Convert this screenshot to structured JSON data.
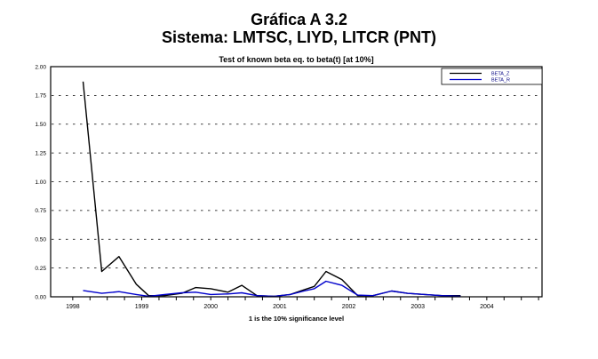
{
  "header": {
    "title_line1": "Gráfica A 3.2",
    "title_line2": "Sistema: LMTSC, LIYD, LITCR (PNT)"
  },
  "chart_data": {
    "type": "line",
    "title": "Test of known beta eq. to beta(t) [at 10%]",
    "footnote": "1 is the 10% significance level",
    "xlabel": "",
    "ylabel": "",
    "xlim": [
      1997.68,
      2004.8
    ],
    "ylim": [
      0,
      2
    ],
    "grid": "horizontal-dashed",
    "legend_position": "top-right",
    "x_tick_years": [
      1998,
      1999,
      2000,
      2001,
      2002,
      2003,
      2004
    ],
    "x_minor_tick_step": 0.25,
    "y_tick_labels": [
      "0.00",
      "0.25",
      "0.50",
      "0.75",
      "1.00",
      "1.25",
      "1.50",
      "1.75",
      "2.00"
    ],
    "y_tick_values": [
      0,
      0.25,
      0.5,
      0.75,
      1,
      1.25,
      1.5,
      1.75,
      2
    ],
    "x": [
      1998.15,
      1998.42,
      1998.67,
      1998.92,
      1999.1,
      1999.33,
      1999.58,
      1999.78,
      2000.0,
      2000.25,
      2000.45,
      2000.67,
      2000.92,
      2001.15,
      2001.35,
      2001.5,
      2001.67,
      2001.9,
      2002.13,
      2002.35,
      2002.62,
      2002.85,
      2003.1,
      2003.35,
      2003.62
    ],
    "series": [
      {
        "name": "BETA_Z",
        "color": "#000000",
        "values": [
          1.87,
          0.22,
          0.35,
          0.11,
          0.01,
          0.01,
          0.03,
          0.08,
          0.07,
          0.04,
          0.1,
          0.01,
          0.005,
          0.02,
          0.06,
          0.09,
          0.22,
          0.15,
          0.01,
          0.01,
          0.05,
          0.03,
          0.02,
          0.01,
          0.01
        ]
      },
      {
        "name": "BETA_R",
        "color": "#0000cc",
        "values": [
          0.055,
          0.03,
          0.045,
          0.02,
          0.005,
          0.02,
          0.035,
          0.04,
          0.02,
          0.025,
          0.035,
          0.01,
          0.005,
          0.02,
          0.05,
          0.07,
          0.135,
          0.1,
          0.015,
          0.01,
          0.05,
          0.03,
          0.02,
          0.01,
          0.005
        ]
      }
    ],
    "colors": {
      "frame": "#000000",
      "grid": "#000000",
      "legend_text": "#000080",
      "text": "#000000"
    }
  }
}
